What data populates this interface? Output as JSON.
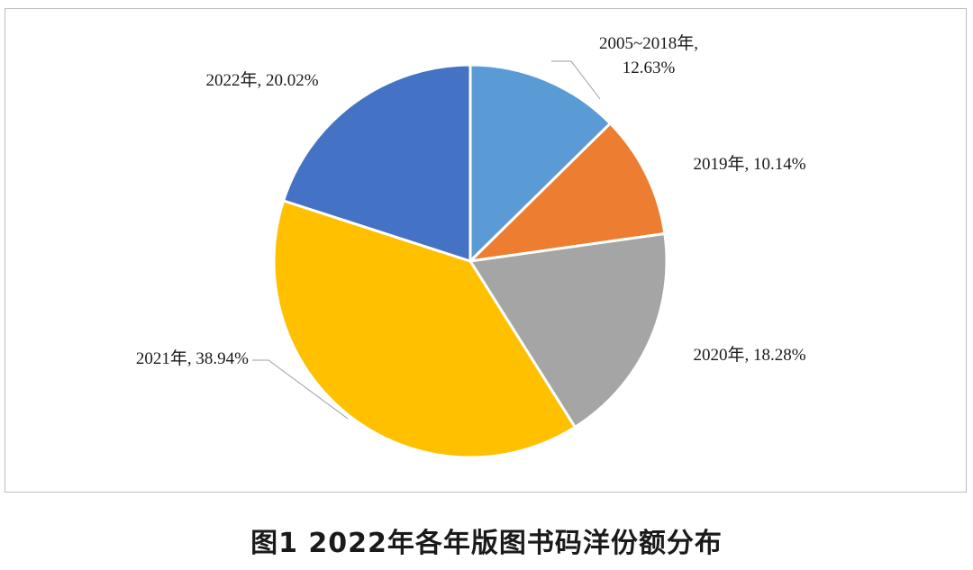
{
  "chart_data": {
    "type": "pie",
    "start_angle_deg": 0,
    "direction": "clockwise",
    "slices": [
      {
        "label_lines": [
          "2005~2018年,",
          "12.63%"
        ],
        "category": "2005~2018年",
        "value": 12.63,
        "color": "#5b9bd5"
      },
      {
        "label_lines": [
          "2019年, 10.14%"
        ],
        "category": "2019年",
        "value": 10.14,
        "color": "#ed7d31"
      },
      {
        "label_lines": [
          "2020年, 18.28%"
        ],
        "category": "2020年",
        "value": 18.28,
        "color": "#a5a5a5"
      },
      {
        "label_lines": [
          "2021年, 38.94%"
        ],
        "category": "2021年",
        "value": 38.94,
        "color": "#ffc000"
      },
      {
        "label_lines": [
          "2022年, 20.02%"
        ],
        "category": "2022年",
        "value": 20.02,
        "color": "#4472c4"
      }
    ]
  },
  "caption": "图1  2022年各年版图书码洋份额分布"
}
